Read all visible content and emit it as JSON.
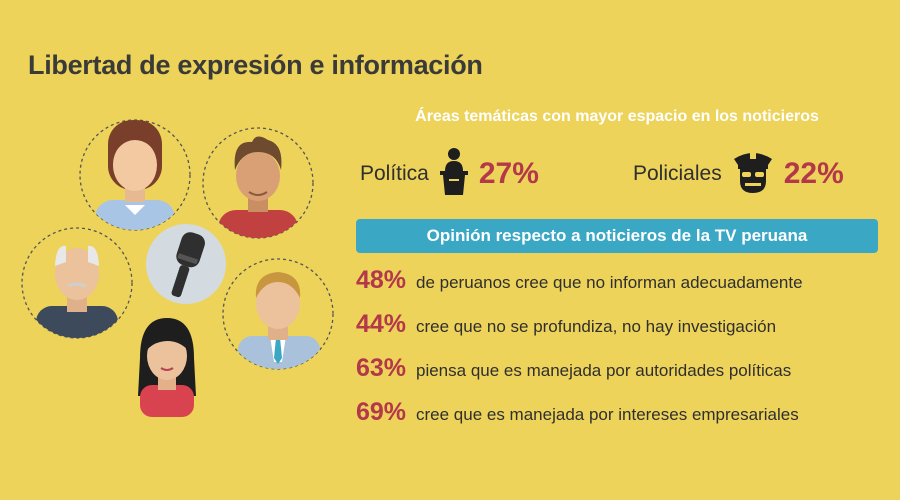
{
  "title": "Libertad de expresión e información",
  "topics": {
    "heading": "Áreas temáticas con mayor espacio en los noticieros",
    "items": [
      {
        "label": "Política",
        "value": "27%",
        "icon": "podium-speaker-icon"
      },
      {
        "label": "Policiales",
        "value": "22%",
        "icon": "police-officer-icon"
      }
    ]
  },
  "opinion": {
    "heading": "Opinión respecto a noticieros de la TV peruana",
    "items": [
      {
        "value": "48%",
        "text": "de peruanos cree que no informan adecuadamente"
      },
      {
        "value": "44%",
        "text": "cree que no se profundiza, no hay investigación"
      },
      {
        "value": "63%",
        "text": "piensa que es manejada por autoridades políticas"
      },
      {
        "value": "69%",
        "text": "cree que es manejada por intereses empresariales"
      }
    ]
  },
  "colors": {
    "background": "#EDD35A",
    "accent": "#B3384A",
    "banner": "#3AA8C4",
    "circle": "#D3DBE0"
  }
}
